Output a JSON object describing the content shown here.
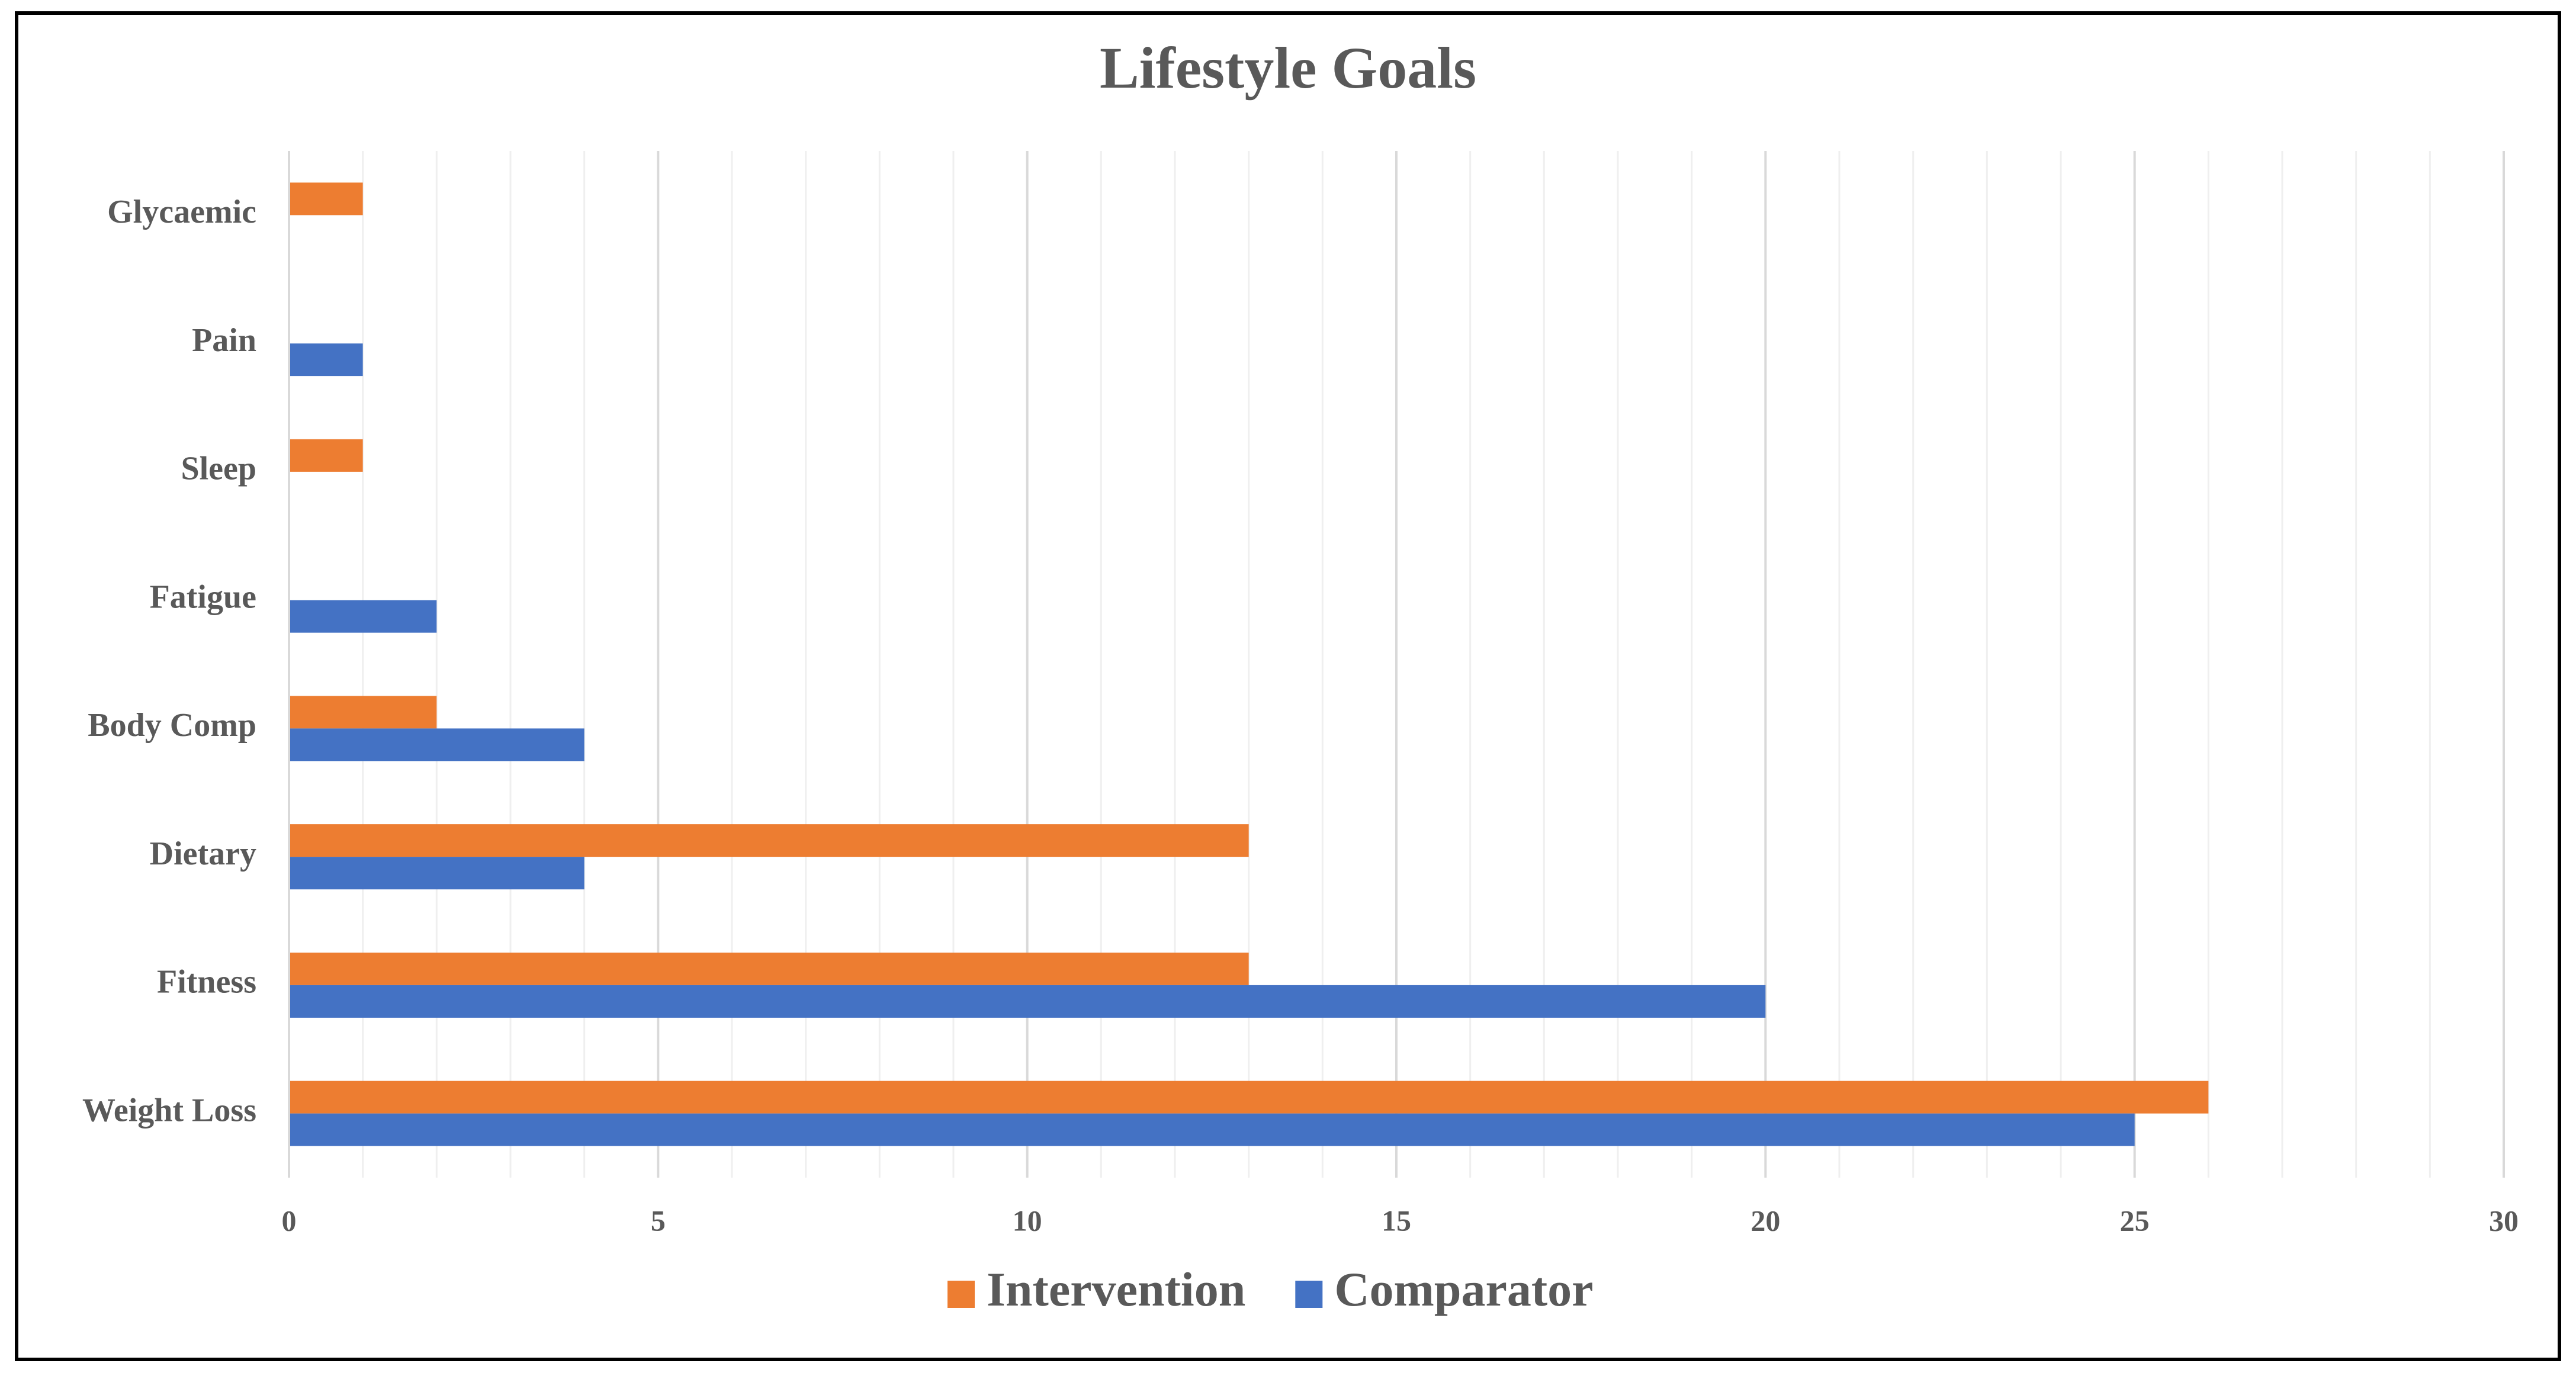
{
  "chart_data": {
    "type": "hbar",
    "title": "Lifestyle Goals",
    "categories": [
      "Weight Loss",
      "Fitness",
      "Dietary",
      "Body Comp",
      "Fatigue",
      "Sleep",
      "Pain",
      "Glycaemic"
    ],
    "series": [
      {
        "name": "Intervention",
        "color": "#ed7d31",
        "values": [
          26,
          13,
          13,
          2,
          0,
          1,
          0,
          1
        ]
      },
      {
        "name": "Comparator",
        "color": "#4472c4",
        "values": [
          25,
          20,
          4,
          4,
          2,
          0,
          1,
          0
        ]
      }
    ],
    "xlim": [
      0,
      30
    ],
    "xticks": [
      0,
      5,
      10,
      15,
      20,
      25,
      30
    ],
    "xminorticks": [
      1,
      2,
      3,
      4,
      6,
      7,
      8,
      9,
      11,
      12,
      13,
      14,
      16,
      17,
      18,
      19,
      21,
      22,
      23,
      24,
      26,
      27,
      28,
      29
    ],
    "grid": true,
    "legend": "bottom"
  }
}
